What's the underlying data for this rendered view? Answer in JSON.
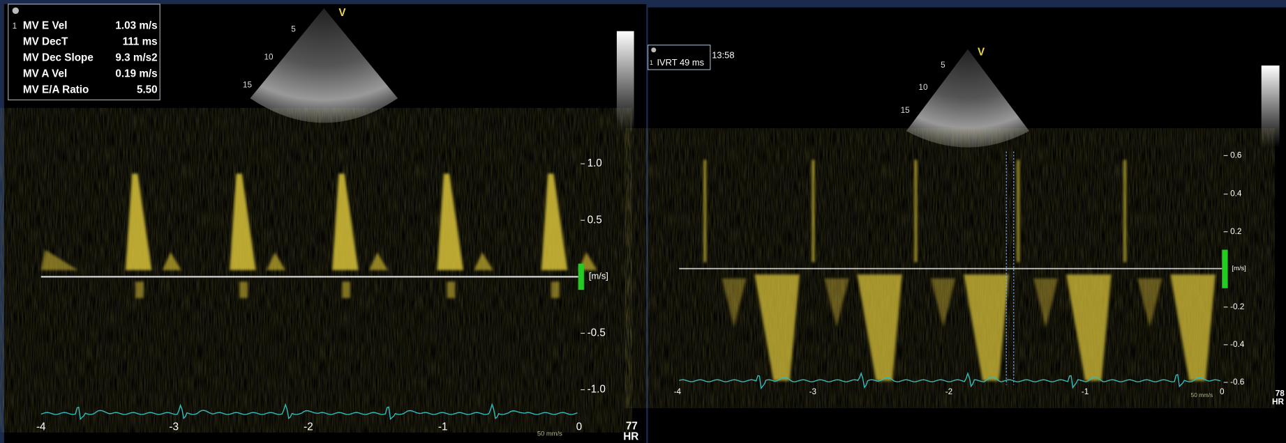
{
  "left": {
    "measurement_index": "1",
    "measurements": [
      {
        "label": "MV E Vel",
        "value": "1.03 m/s"
      },
      {
        "label": "MV DecT",
        "value": "111 ms"
      },
      {
        "label": "MV Dec Slope",
        "value": "9.3 m/s2"
      },
      {
        "label": "MV A Vel",
        "value": "0.19 m/s"
      },
      {
        "label": "MV E/A Ratio",
        "value": "5.50"
      }
    ],
    "sector_labels": {
      "marker": "V",
      "depths": [
        "5",
        "10",
        "15"
      ]
    },
    "yticks": [
      "1.0",
      "0.5",
      "-0.5",
      "-1.0"
    ],
    "unit": "[m/s]",
    "xticks": [
      "-4",
      "-3",
      "-2",
      "-1",
      "0"
    ],
    "sweep": "50 mm/s",
    "hr_value": "77",
    "hr_label": "HR"
  },
  "right": {
    "measurement_index": "1",
    "measurement": "IVRT 49 ms",
    "time": "13:58",
    "sector_labels": {
      "marker": "V",
      "depths": [
        "5",
        "10",
        "15"
      ]
    },
    "yticks": [
      "0.6",
      "0.4",
      "0.2",
      "-0.2",
      "-0.4",
      "-0.6"
    ],
    "unit": "[m/s]",
    "xticks": [
      "-4",
      "-3",
      "-2",
      "-1",
      "0"
    ],
    "sweep": "50 mm/s",
    "hr_value": "78",
    "hr_label": "HR"
  }
}
